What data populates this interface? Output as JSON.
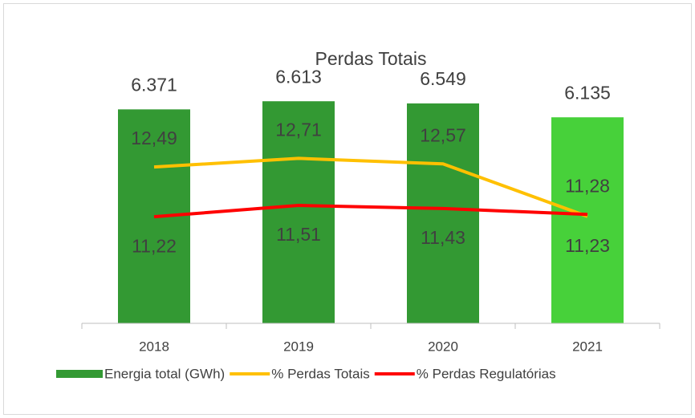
{
  "chart_data": {
    "type": "bar",
    "title": "Perdas Totais",
    "categories": [
      "2018",
      "2019",
      "2020",
      "2021"
    ],
    "ylim": [
      0,
      7000
    ],
    "y2lim": [
      8.5,
      14.5
    ],
    "series": [
      {
        "name": "Energia total (GWh)",
        "type": "bar",
        "colors": [
          "#339933",
          "#339933",
          "#339933",
          "#47d13a"
        ],
        "values": [
          6371,
          6613,
          6549,
          6135
        ],
        "value_labels": [
          "6.371",
          "6.613",
          "6.549",
          "6.135"
        ]
      },
      {
        "name": "% Perdas Totais",
        "type": "line",
        "axis": "y2",
        "color": "#ffc000",
        "values": [
          12.49,
          12.71,
          12.57,
          11.23
        ],
        "value_labels": [
          "12,49",
          "12,71",
          "12,57",
          "11,23"
        ]
      },
      {
        "name": "% Perdas Regulatórias",
        "type": "line",
        "axis": "y2",
        "color": "#ff0000",
        "values": [
          11.22,
          11.51,
          11.43,
          11.28
        ],
        "value_labels": [
          "11,22",
          "11,51",
          "11,43",
          "11,28"
        ]
      }
    ]
  }
}
